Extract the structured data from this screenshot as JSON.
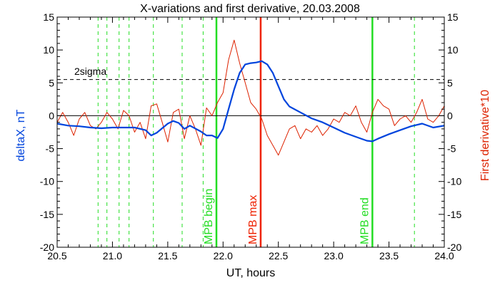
{
  "chart_data": {
    "type": "line",
    "title": "X-variations and first derivative, 20.03.2008",
    "xlabel": "UT, hours",
    "ylabel_left": "deltaX, nT",
    "ylabel_right": "First derivative*10",
    "xlim": [
      20.5,
      24.0
    ],
    "ylim": [
      -20,
      15
    ],
    "x_ticks": [
      20.5,
      21.0,
      21.5,
      22.0,
      22.5,
      23.0,
      23.5,
      24.0
    ],
    "x_tick_labels": [
      "20.5",
      "21.0",
      "21.5",
      "22.0",
      "22.5",
      "23.0",
      "23.5",
      "24.0"
    ],
    "y_ticks": [
      -20,
      -15,
      -10,
      -5,
      0,
      5,
      10,
      15
    ],
    "y_tick_labels": [
      "-20",
      "-15",
      "-10",
      "-5",
      "0",
      "5",
      "10",
      "15"
    ],
    "reference_lines": [
      {
        "label": "2sigma",
        "y": 5.5,
        "style": "dashed",
        "color": "#000000"
      },
      {
        "label": "",
        "y": 0,
        "style": "solid",
        "color": "#000000"
      }
    ],
    "vertical_markers": [
      {
        "x": 21.94,
        "label": "MPB begin",
        "color": "#22dd22",
        "style": "solid"
      },
      {
        "x": 22.34,
        "label": "MPB max",
        "color": "#ee2200",
        "style": "solid"
      },
      {
        "x": 23.35,
        "label": "MPB end",
        "color": "#22dd22",
        "style": "solid"
      }
    ],
    "dashed_markers": {
      "color": "#22dd22",
      "x": [
        20.87,
        20.95,
        21.06,
        21.15,
        21.37,
        21.63,
        21.82,
        23.73
      ]
    },
    "series": [
      {
        "color": "#0044dd",
        "x": [
          20.5,
          20.6,
          20.7,
          20.8,
          20.9,
          21.0,
          21.1,
          21.2,
          21.3,
          21.35,
          21.4,
          21.5,
          21.55,
          21.6,
          21.65,
          21.7,
          21.8,
          21.85,
          21.9,
          21.95,
          22.0,
          22.05,
          22.1,
          22.15,
          22.2,
          22.25,
          22.3,
          22.35,
          22.4,
          22.45,
          22.5,
          22.55,
          22.6,
          22.7,
          22.8,
          22.9,
          23.0,
          23.1,
          23.2,
          23.3,
          23.35,
          23.4,
          23.5,
          23.6,
          23.7,
          23.8,
          23.9,
          24.0
        ],
        "values": [
          -1.2,
          -1.5,
          -1.6,
          -1.8,
          -1.9,
          -1.8,
          -1.8,
          -1.8,
          -2.2,
          -3.0,
          -2.6,
          -1.2,
          -0.8,
          -1.1,
          -2.0,
          -1.5,
          -2.4,
          -3.0,
          -3.0,
          -3.4,
          -2.0,
          1.0,
          4.0,
          6.5,
          7.8,
          8.0,
          8.1,
          8.3,
          7.8,
          6.5,
          4.5,
          2.5,
          1.4,
          0.5,
          -0.4,
          -1.0,
          -1.8,
          -2.6,
          -3.2,
          -3.8,
          -3.9,
          -3.5,
          -2.8,
          -2.2,
          -1.6,
          -1.2,
          -1.8,
          -1.5
        ]
      },
      {
        "color": "#dd2200",
        "x": [
          20.5,
          20.55,
          20.6,
          20.65,
          20.7,
          20.75,
          20.8,
          20.85,
          20.9,
          20.95,
          21.0,
          21.05,
          21.1,
          21.15,
          21.2,
          21.25,
          21.3,
          21.35,
          21.4,
          21.45,
          21.5,
          21.55,
          21.6,
          21.65,
          21.7,
          21.75,
          21.8,
          21.85,
          21.9,
          21.95,
          22.0,
          22.05,
          22.1,
          22.15,
          22.2,
          22.25,
          22.3,
          22.35,
          22.4,
          22.45,
          22.5,
          22.55,
          22.6,
          22.65,
          22.7,
          22.75,
          22.8,
          22.85,
          22.9,
          22.95,
          23.0,
          23.05,
          23.1,
          23.15,
          23.2,
          23.25,
          23.3,
          23.35,
          23.4,
          23.45,
          23.5,
          23.55,
          23.6,
          23.65,
          23.7,
          23.75,
          23.8,
          23.85,
          23.9,
          23.95,
          24.0
        ],
        "values": [
          -1.0,
          0.5,
          -1.0,
          -3.0,
          -0.5,
          0.5,
          -1.5,
          -2.0,
          -1.0,
          0.5,
          -0.5,
          -2.0,
          0.8,
          0.0,
          -2.5,
          -1.0,
          -3.5,
          1.5,
          1.8,
          -1.0,
          -4.0,
          0.5,
          1.0,
          -3.5,
          0.0,
          -2.0,
          -4.5,
          1.2,
          0.0,
          2.0,
          3.5,
          8.5,
          11.5,
          8.0,
          5.0,
          2.0,
          1.0,
          -0.5,
          -3.0,
          -4.5,
          -6.0,
          -4.0,
          -2.0,
          -1.5,
          -3.5,
          -2.0,
          -2.5,
          -1.5,
          -3.0,
          -2.0,
          -0.5,
          -1.0,
          0.5,
          0.0,
          1.5,
          -1.0,
          -2.5,
          0.5,
          2.5,
          1.5,
          1.0,
          -1.5,
          -0.5,
          0.0,
          -1.0,
          0.5,
          2.5,
          -0.5,
          -1.0,
          0.0,
          1.5
        ]
      }
    ]
  }
}
